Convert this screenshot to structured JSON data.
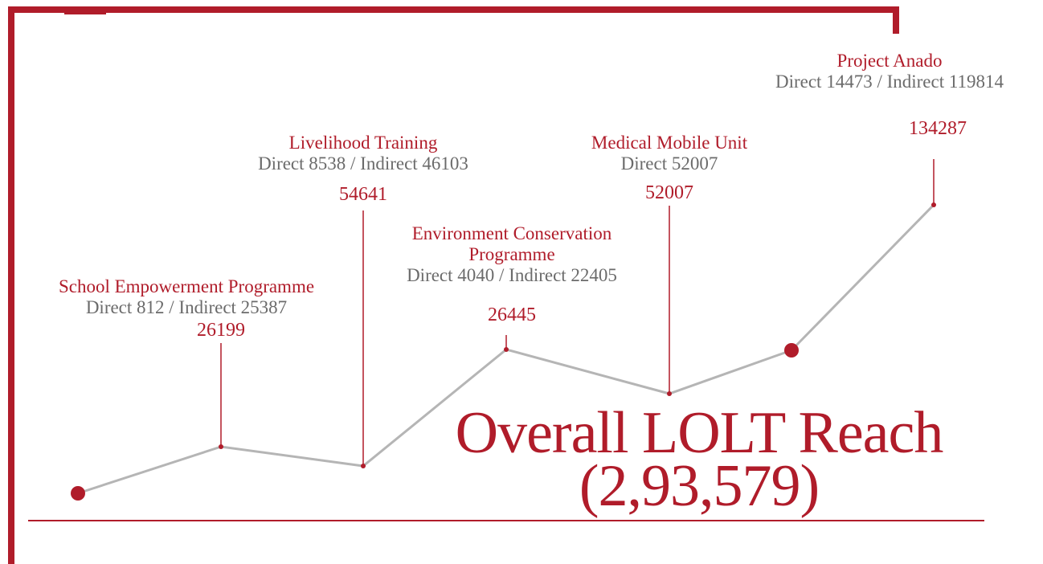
{
  "title": "Overall LOLT Reach",
  "total": "(2,93,579)",
  "programmes": [
    {
      "name": "School Empowerment Programme",
      "detail": "Direct 812 / Indirect 25387",
      "total": "26199"
    },
    {
      "name": "Livelihood Training",
      "detail": "Direct 8538 / Indirect 46103",
      "total": "54641"
    },
    {
      "name": "Environment Conservation Programme",
      "detail": "Direct 4040 / Indirect 22405",
      "total": "26445"
    },
    {
      "name": "Medical Mobile Unit",
      "detail": "Direct 52007",
      "total": "52007"
    },
    {
      "name": "Project Anado",
      "detail": "Direct 14473 / Indirect 119814",
      "total": "134287"
    }
  ]
}
